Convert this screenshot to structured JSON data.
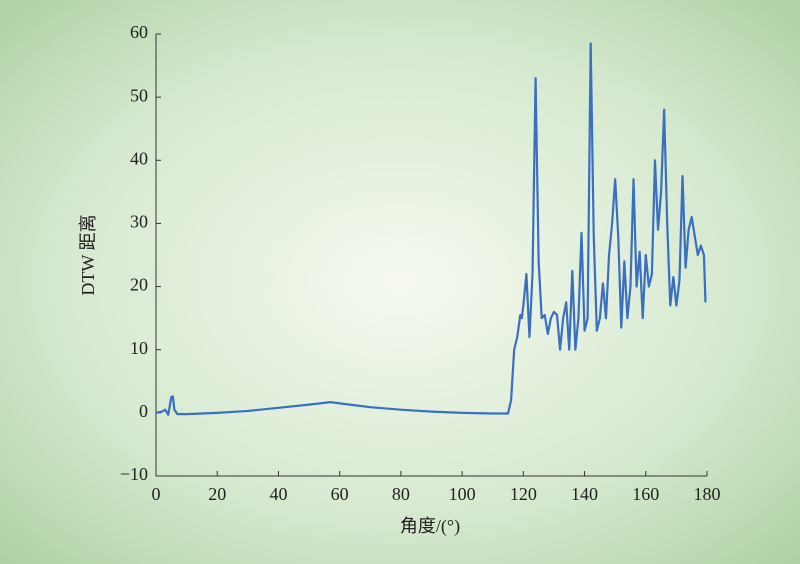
{
  "chart_data": {
    "type": "line",
    "xlabel": "角度/(°)",
    "ylabel": "DTW 距离",
    "xlim": [
      0,
      180
    ],
    "xticks": [
      0,
      20,
      40,
      60,
      80,
      100,
      120,
      140,
      160,
      180
    ],
    "ylim": [
      -10,
      60
    ],
    "yticks": [
      {
        "value": -10,
        "label": "−10"
      },
      0,
      10,
      20,
      30,
      40,
      50,
      60
    ],
    "grid": false,
    "series": [
      {
        "color": "#3b6fc0",
        "x": [
          0,
          2,
          3,
          4,
          5,
          5.5,
          6,
          7,
          10,
          20,
          30,
          40,
          50,
          57,
          60,
          70,
          80,
          90,
          100,
          110,
          115,
          116,
          117,
          118,
          119,
          119.5,
          120,
          121,
          122,
          123,
          124,
          125,
          126,
          127,
          128,
          129,
          130,
          131,
          132,
          133,
          134,
          135,
          136,
          137,
          138,
          139,
          140,
          141,
          142,
          143,
          144,
          145,
          146,
          147,
          148,
          149,
          150,
          151,
          152,
          153,
          154,
          155,
          156,
          157,
          158,
          159,
          160,
          161,
          162,
          163,
          164,
          165,
          166,
          167,
          168,
          169,
          170,
          171,
          172,
          173,
          174,
          175,
          176,
          177,
          178,
          179,
          179.5
        ],
        "values": [
          0,
          0.2,
          0.5,
          -0.3,
          2.5,
          2.6,
          0.5,
          -0.2,
          -0.2,
          0,
          0.3,
          0.8,
          1.3,
          1.7,
          1.5,
          0.9,
          0.5,
          0.2,
          0,
          -0.1,
          -0.1,
          2,
          10,
          12,
          15.5,
          15,
          17,
          22,
          12,
          22,
          53,
          24,
          15,
          15.5,
          12.5,
          15,
          16,
          15.5,
          10,
          15,
          17.5,
          10,
          22.5,
          10,
          15,
          28.5,
          13,
          15,
          58.5,
          28,
          13,
          15,
          20.5,
          15,
          25,
          30,
          37,
          28,
          13.5,
          24,
          15,
          20,
          37,
          20,
          25.5,
          15,
          25,
          20,
          22,
          40,
          29,
          35,
          48,
          30,
          17,
          21.5,
          17,
          21,
          37.5,
          23,
          29,
          31,
          28,
          25,
          26.5,
          25,
          17.5
        ]
      }
    ]
  }
}
